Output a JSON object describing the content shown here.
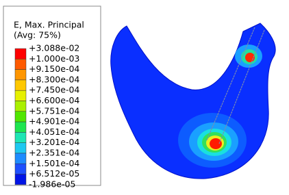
{
  "legend": {
    "title": "E, Max. Principal",
    "subtitle": "(Avg: 75%)",
    "labels": [
      "+3.088e-02",
      "+1.000e-03",
      "+9.150e-04",
      "+8.300e-04",
      "+7.450e-04",
      "+6.600e-04",
      "+5.751e-04",
      "+4.901e-04",
      "+4.051e-04",
      "+3.201e-04",
      "+2.351e-04",
      "+1.501e-04",
      "+6.512e-05",
      "-1.986e-05"
    ]
  }
}
